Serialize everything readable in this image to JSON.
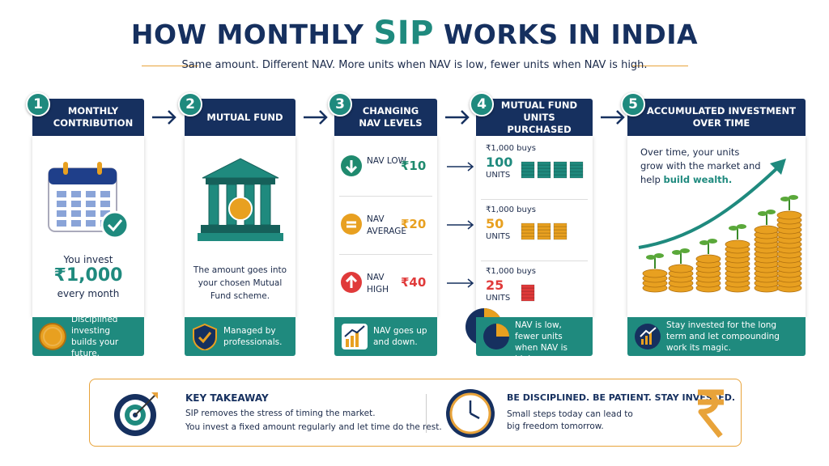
{
  "header": {
    "title_start": "HOW MONTHLY",
    "title_highlight": "SIP",
    "title_end": "WORKS IN INDIA",
    "subtitle": "Same amount. Different NAV. More units when NAV is low, fewer units when NAV is high."
  },
  "steps": [
    {
      "number": "1",
      "title": "MONTHLY CONTRIBUTION",
      "body": [
        "You invest",
        "₹1,000",
        "every month"
      ],
      "footer": "Disciplined investing builds your future."
    },
    {
      "number": "2",
      "title": "MUTUAL FUND",
      "body": [
        "The amount goes into your chosen Mutual Fund scheme."
      ],
      "footer": "Managed by professionals."
    },
    {
      "number": "3",
      "title": "CHANGING NAV LEVELS",
      "rows": [
        {
          "label": "NAV LOW",
          "value": "₹10"
        },
        {
          "label": "NAV AVERAGE",
          "value": "₹20"
        },
        {
          "label": "NAV HIGH",
          "value": "₹40"
        }
      ],
      "footer": "NAV goes up and down."
    },
    {
      "number": "4",
      "title": "MUTUAL FUND UNITS PURCHASED",
      "rows": [
        {
          "buys": "₹1,000 buys",
          "units": "100",
          "unit_label": "UNITS"
        },
        {
          "buys": "₹1,000 buys",
          "units": "50",
          "unit_label": "UNITS"
        },
        {
          "buys": "₹1,000 buys",
          "units": "25",
          "unit_label": "UNITS"
        }
      ],
      "footer": "More units when NAV is low, fewer units when NAV is high."
    },
    {
      "number": "5",
      "title": "ACCUMULATED INVESTMENT OVER TIME",
      "body": [
        "Over time, your units grow with the market and help",
        "build wealth."
      ],
      "footer": "Stay invested for the long term and let compounding work its magic."
    }
  ],
  "takeaway": {
    "heading": "KEY TAKEAWAY",
    "lines": [
      "SIP removes the stress of timing the market.",
      "You invest a fixed amount regularly and let time do the rest."
    ],
    "motto": "BE DISCIPLINED. BE PATIENT. STAY INVESTED.",
    "motto_text": "Small steps today can lead to big freedom tomorrow."
  }
}
